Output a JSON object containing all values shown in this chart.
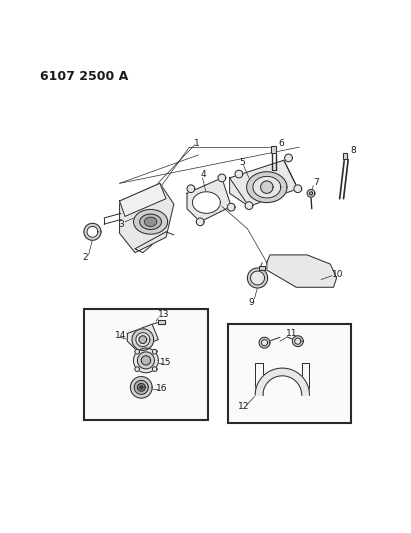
{
  "title": "6107 2500 A",
  "bg_color": "#ffffff",
  "line_color": "#2a2a2a",
  "text_color": "#1a1a1a",
  "fill_light": "#e8e8e8",
  "fill_mid": "#d0d0d0",
  "fill_dark": "#b8b8b8",
  "figsize": [
    4.11,
    5.33
  ],
  "dpi": 100
}
